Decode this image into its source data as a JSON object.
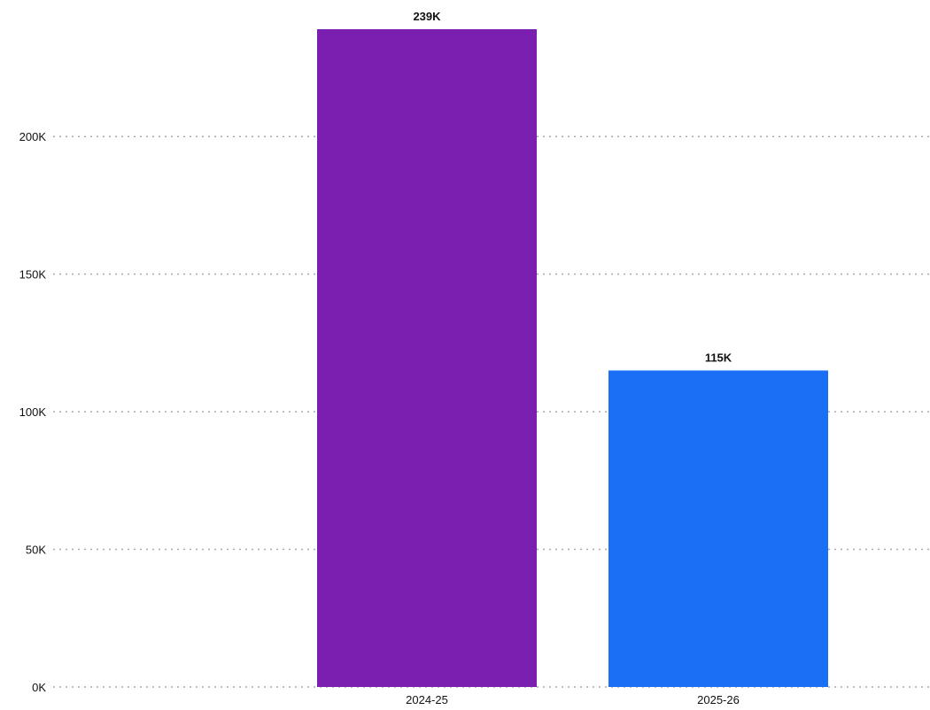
{
  "chart_data": {
    "type": "bar",
    "categories": [
      "2024-25",
      "2025-26"
    ],
    "values": [
      239000,
      115000
    ],
    "data_labels": [
      "239K",
      "115K"
    ],
    "colors": [
      "#7a1fb0",
      "#1a6ff5"
    ],
    "title": "",
    "xlabel": "",
    "ylabel": "",
    "ylim": [
      0,
      239000
    ],
    "yticks": [
      0,
      50000,
      100000,
      150000,
      200000
    ],
    "ytick_labels": [
      "0K",
      "50K",
      "100K",
      "150K",
      "200K"
    ],
    "grid": true,
    "grid_style": "dotted",
    "legend": "none"
  }
}
